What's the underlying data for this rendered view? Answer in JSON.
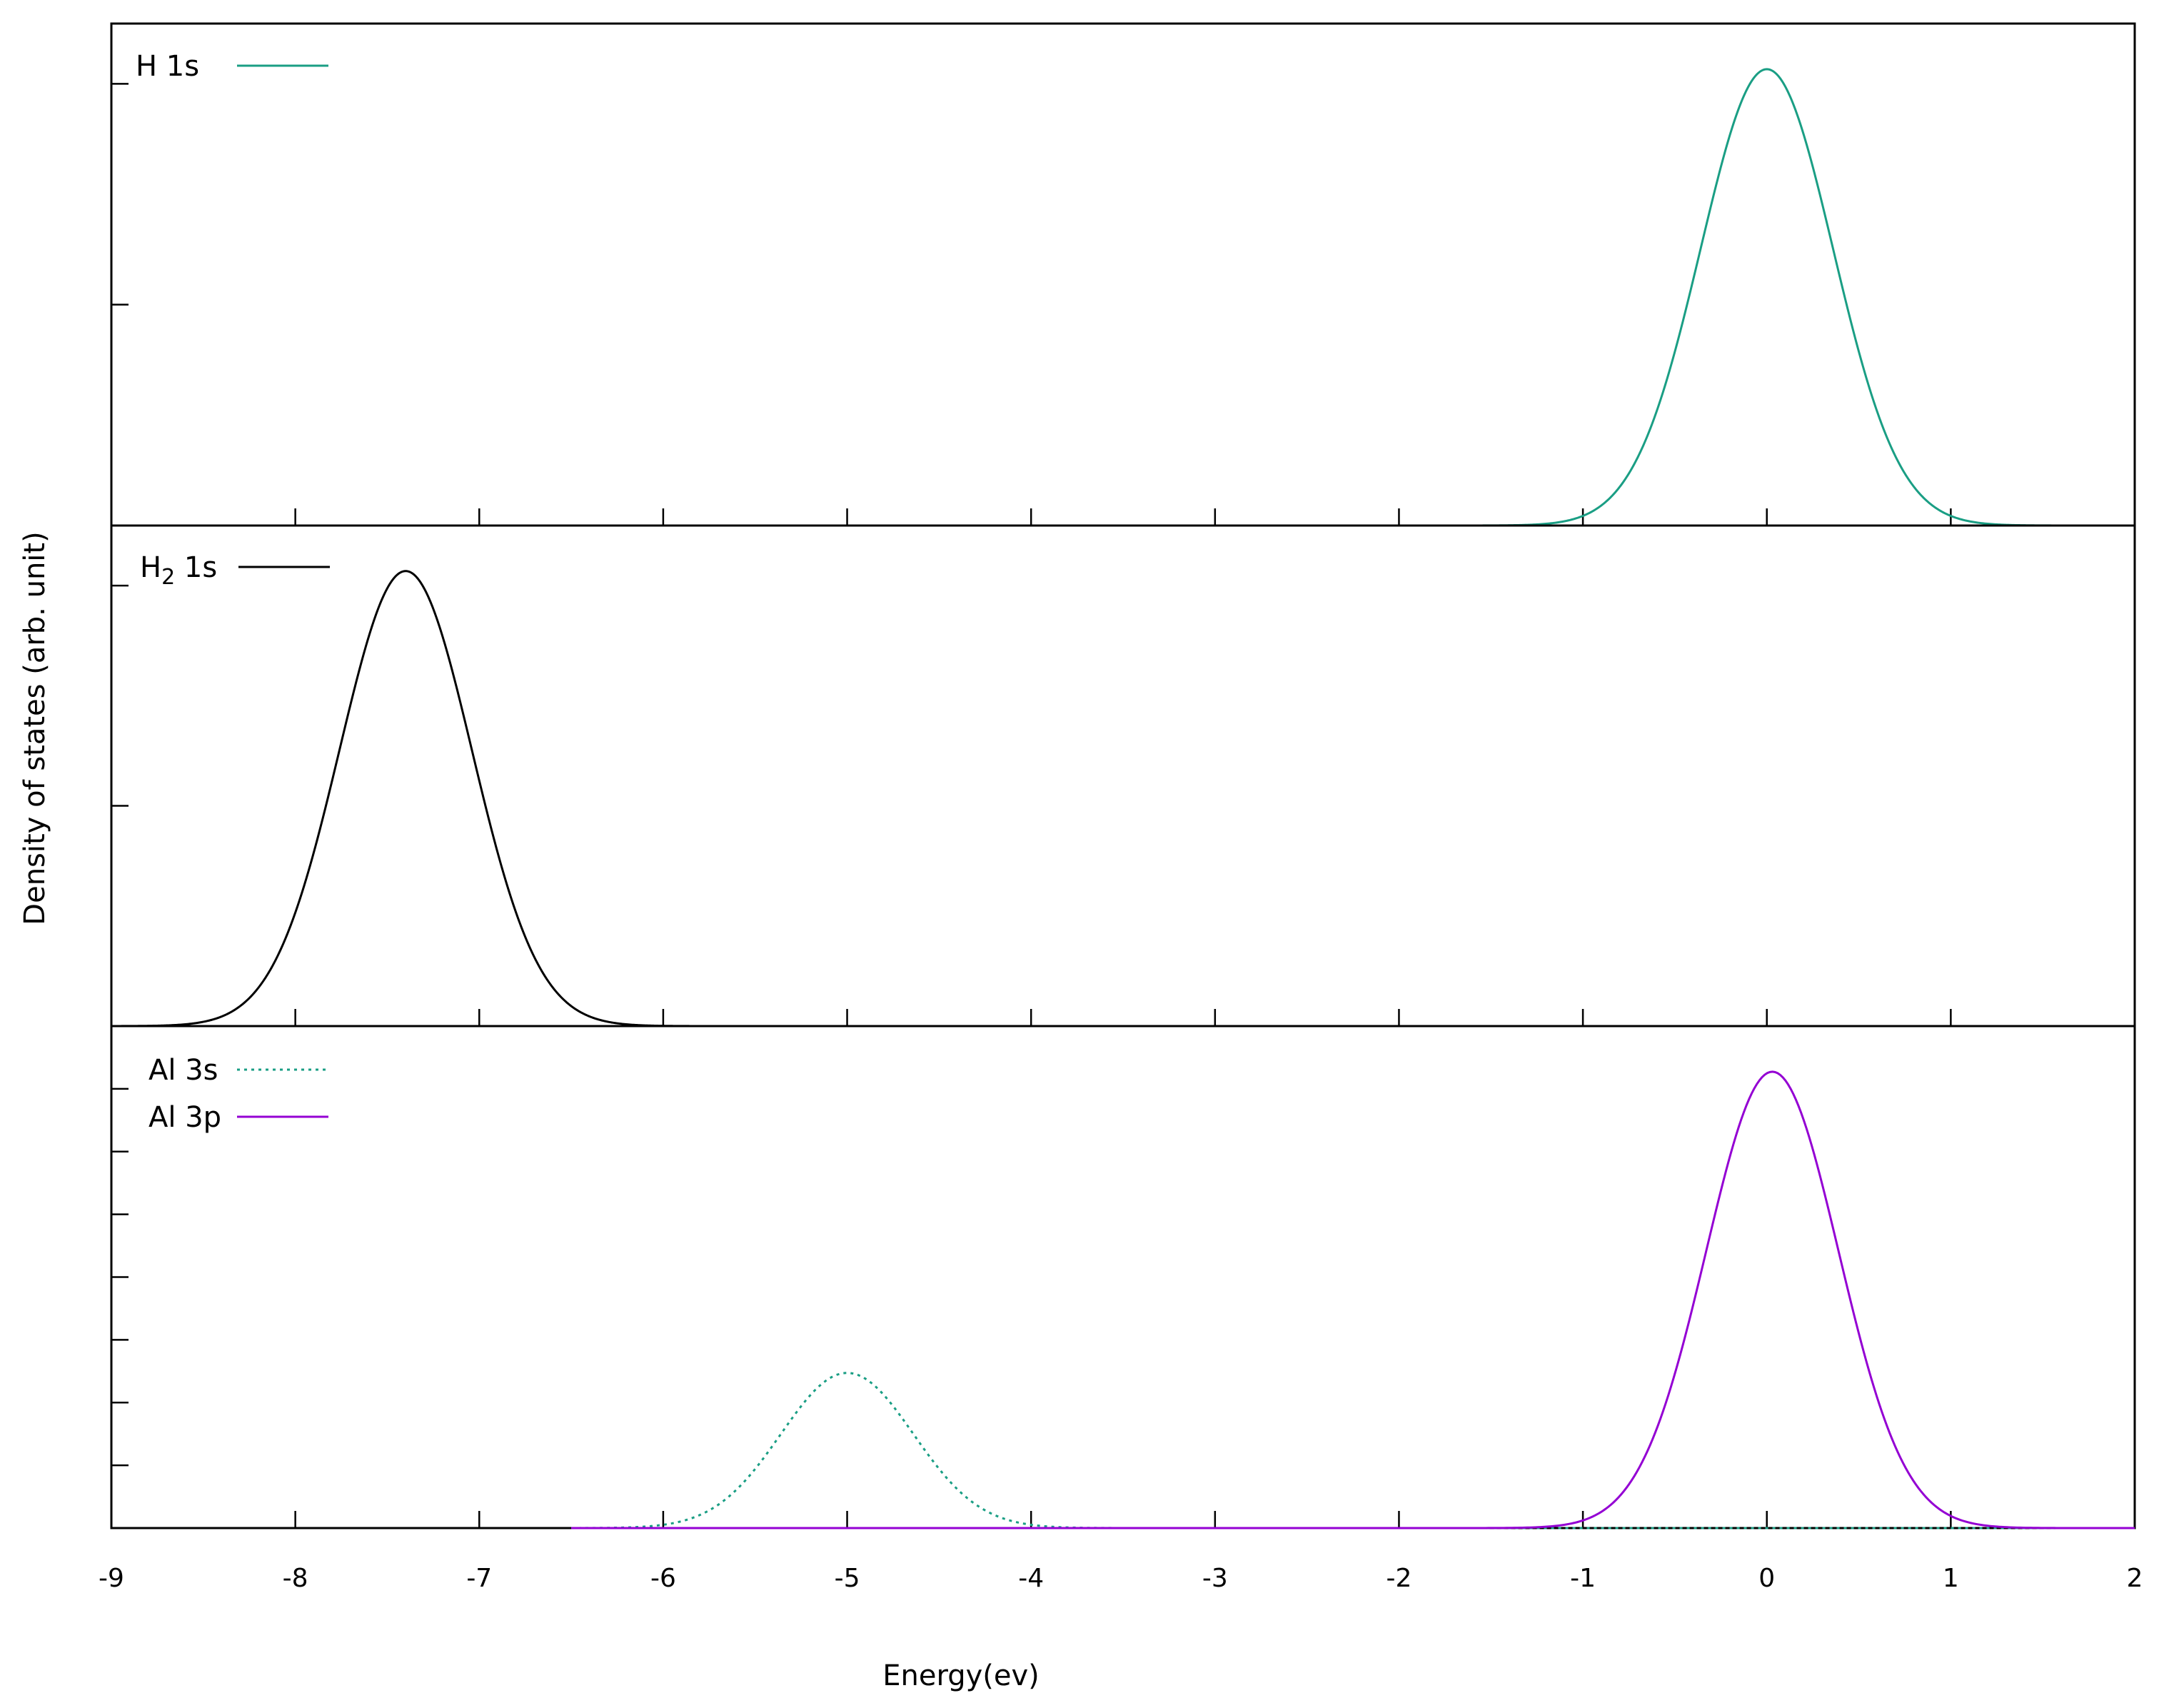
{
  "chart_data": [
    {
      "type": "line",
      "xlim": [
        -9,
        2
      ],
      "ylim": [
        0,
        1.1
      ],
      "xticks": [
        -9,
        -8,
        -7,
        -6,
        -5,
        -4,
        -3,
        -2,
        -1,
        0,
        1,
        2
      ],
      "grid": false,
      "legend": "top-left",
      "series": [
        {
          "name": "H 1s",
          "color": "#1a9e84",
          "dash": "solid",
          "center": 0.0,
          "sigma": 0.36,
          "amplitude": 1.0
        }
      ]
    },
    {
      "type": "line",
      "xlim": [
        -9,
        2
      ],
      "ylim": [
        0,
        1.1
      ],
      "xticks": [
        -9,
        -8,
        -7,
        -6,
        -5,
        -4,
        -3,
        -2,
        -1,
        0,
        1,
        2
      ],
      "grid": false,
      "legend": "top-left",
      "series": [
        {
          "name": "H",
          "name_sub": "2",
          "name_suffix": " 1s",
          "color": "#000000",
          "dash": "solid",
          "center": -7.4,
          "sigma": 0.36,
          "amplitude": 1.0
        }
      ]
    },
    {
      "type": "line",
      "xlim": [
        -9,
        2
      ],
      "ylim": [
        0,
        1.1
      ],
      "xticks": [
        -9,
        -8,
        -7,
        -6,
        -5,
        -4,
        -3,
        -2,
        -1,
        0,
        1,
        2
      ],
      "xtick_labels": [
        "-9",
        "-8",
        "-7",
        "-6",
        "-5",
        "-4",
        "-3",
        "-2",
        "-1",
        "0",
        "1",
        "2"
      ],
      "xlabel": "Energy(ev)",
      "grid": false,
      "legend": "top-left",
      "series": [
        {
          "name": "Al 3s",
          "color": "#1a9e84",
          "dash": "dotted",
          "center": -5.0,
          "sigma": 0.36,
          "amplitude": 0.34,
          "x_from": -6.5,
          "x_to": 2.0
        },
        {
          "name": "Al 3p",
          "color": "#9400d3",
          "dash": "solid",
          "center": 0.03,
          "sigma": 0.36,
          "amplitude": 1.0,
          "x_from": -6.5,
          "x_to": 2.0
        }
      ]
    }
  ],
  "ylabel": "Density of states (arb. unit)"
}
